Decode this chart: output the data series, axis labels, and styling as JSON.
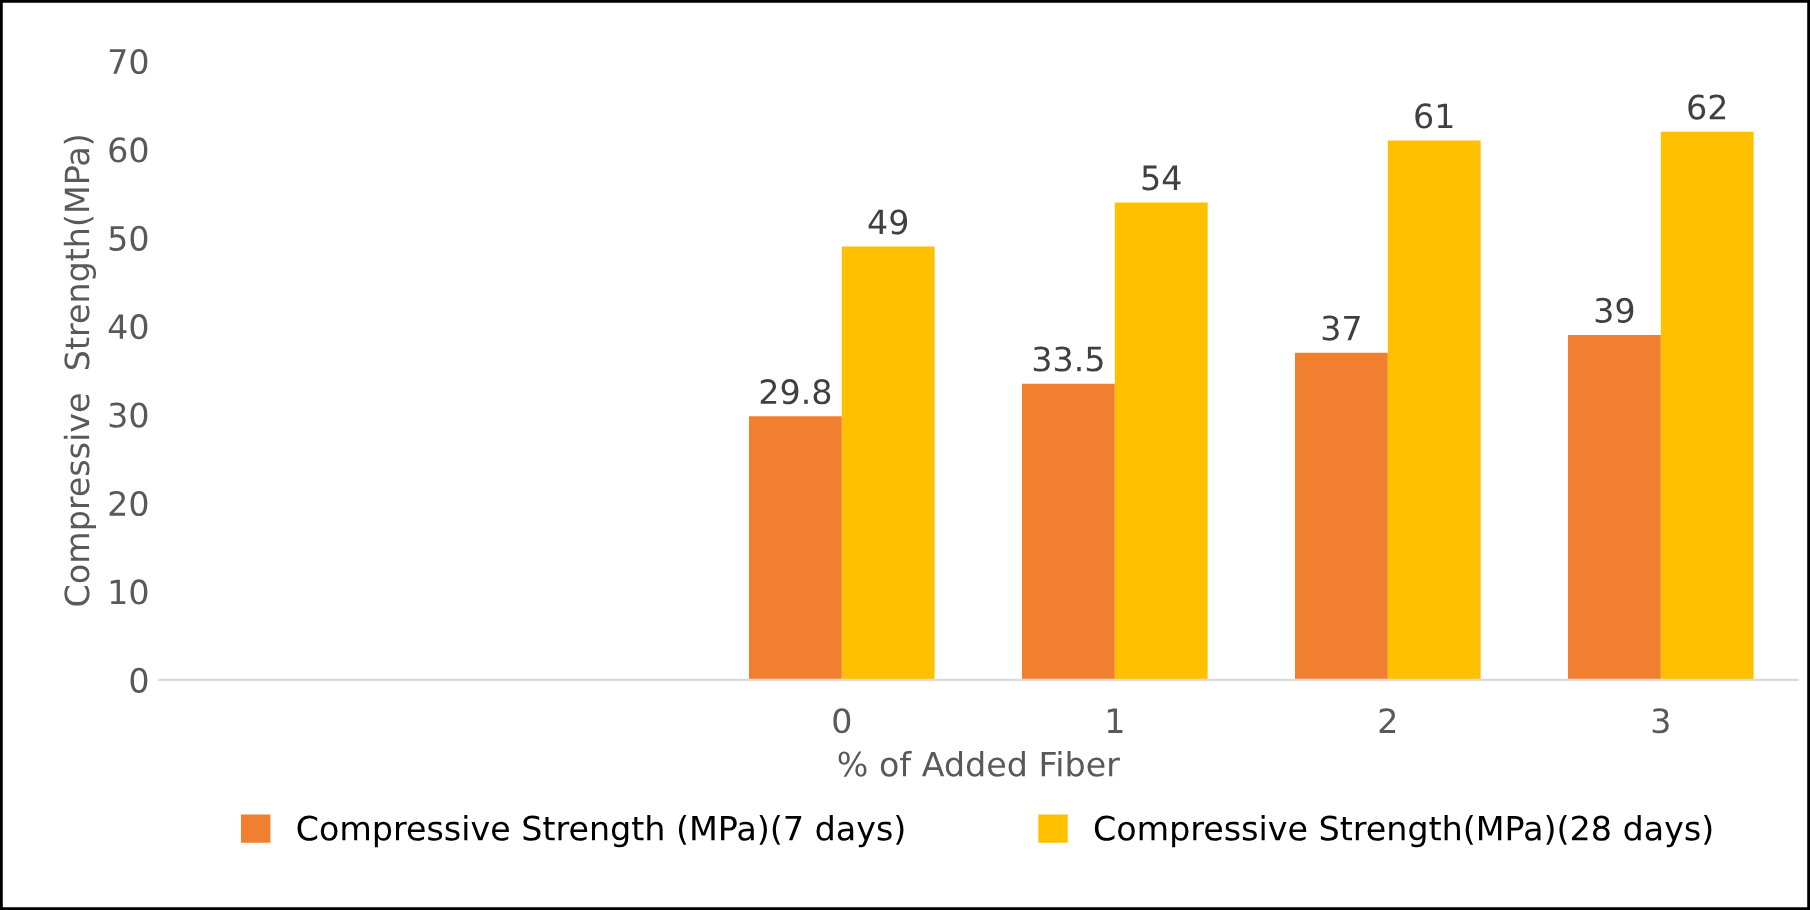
{
  "chart_data": {
    "type": "bar",
    "xlabel": "% of Added Fiber",
    "ylabel": "Compressive  Strength(MPa)",
    "categories": [
      null,
      null,
      "0",
      "1",
      "2",
      "3"
    ],
    "series": [
      {
        "name": "Compressive Strength (MPa)(7 days)",
        "color": "#f07f30",
        "values": [
          null,
          null,
          29.8,
          33.5,
          37,
          39
        ]
      },
      {
        "name": "Compressive Strength(MPa)(28 days)",
        "color": "#ffc000",
        "values": [
          null,
          null,
          49,
          54,
          61,
          62
        ]
      }
    ],
    "ylim": [
      0,
      70
    ],
    "yticks": [
      0,
      10,
      20,
      30,
      40,
      50,
      60,
      70
    ],
    "data_labels": true,
    "grid": false,
    "legend": "bottom"
  }
}
